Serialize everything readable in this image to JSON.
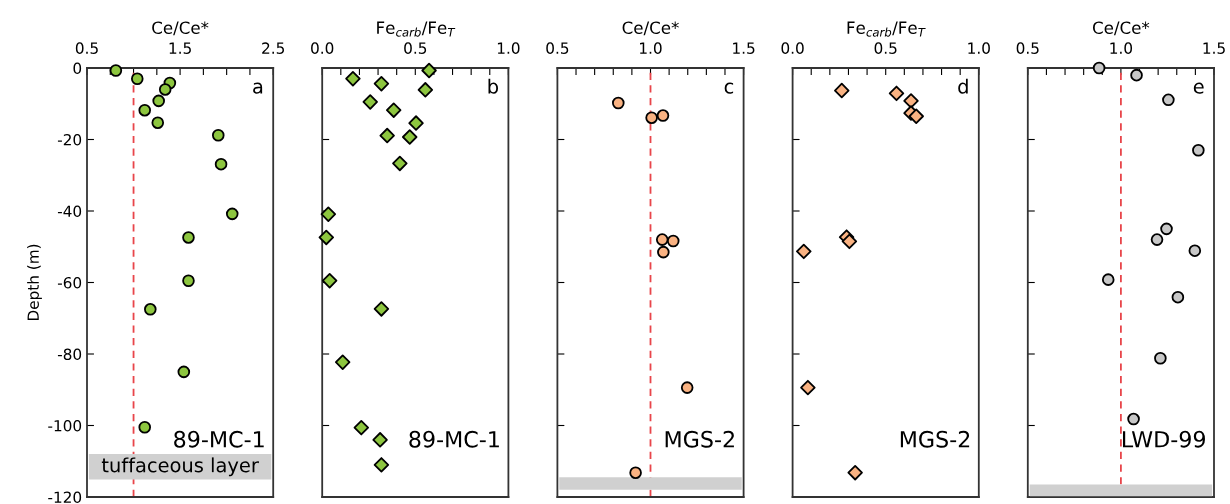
{
  "chart_data": [
    {
      "type": "scatter",
      "xlabel": "Ce/Ce*",
      "ylabel": "Depth (m)",
      "marker": "circle",
      "xlim": [
        0.5,
        2.5
      ],
      "ylim": [
        -120,
        0
      ],
      "xticks": [
        0.5,
        {
          "value": 0.75,
          "label": null
        },
        {
          "value": 1.0,
          "label": null
        },
        {
          "value": 1.25,
          "label": null
        },
        1.5,
        {
          "value": 1.75,
          "label": null
        },
        {
          "value": 2.0,
          "label": null
        },
        {
          "value": 2.25,
          "label": null
        },
        2.5
      ],
      "yticks": [
        0,
        -20,
        -40,
        -60,
        -80,
        -100,
        -120
      ],
      "series": [
        {
          "color": "#8dc63f",
          "x": [
            0.81,
            1.04,
            1.39,
            1.34,
            1.27,
            1.12,
            1.26,
            1.91,
            1.94,
            2.06,
            1.59,
            1.59,
            1.18,
            1.54,
            1.12
          ],
          "values": [
            -0.7,
            -3,
            -4.2,
            -6,
            -9.2,
            -11.8,
            -15.3,
            -18.8,
            -26.9,
            -40.8,
            -47.4,
            -59.5,
            -67.5,
            -85,
            -100.5
          ]
        }
      ],
      "ref_lines": [
        {
          "axis": "x",
          "value": 1.0,
          "color": "#e8454a",
          "line_style": "dashed"
        }
      ],
      "bands": [
        {
          "axis": "y",
          "from": -115.1,
          "to": -108,
          "label": "tuffaceous layer",
          "color": "#d0d0d0"
        }
      ],
      "annotations": [
        "a",
        "89-MC-1"
      ]
    },
    {
      "type": "scatter",
      "xlabel": "Fe$_{carb}$/Fe$_{T}$",
      "marker": "diamond",
      "tick_labels": "x",
      "xlim": [
        0,
        1
      ],
      "ylim": [
        -120,
        0
      ],
      "xticks": [
        {
          "value": 0,
          "label": "0.0"
        },
        {
          "value": 0.1,
          "label": null
        },
        {
          "value": 0.2,
          "label": null
        },
        {
          "value": 0.3,
          "label": null
        },
        {
          "value": 0.4,
          "label": null
        },
        0.5,
        {
          "value": 0.6,
          "label": null
        },
        {
          "value": 0.7,
          "label": null
        },
        {
          "value": 0.8,
          "label": null
        },
        {
          "value": 0.9,
          "label": null
        },
        {
          "value": 1.0,
          "label": "1.0"
        }
      ],
      "yticks": [
        0,
        -20,
        -40,
        -60,
        -80,
        -100,
        -120
      ],
      "series": [
        {
          "color": "#8dc63f",
          "x": [
            0.574,
            0.165,
            0.318,
            0.554,
            0.258,
            0.384,
            0.504,
            0.349,
            0.47,
            0.417,
            0.033,
            0.022,
            0.04,
            0.318,
            0.11,
            0.21,
            0.311,
            0.318
          ],
          "values": [
            -0.7,
            -3.0,
            -4.4,
            -6.1,
            -9.5,
            -11.8,
            -15.4,
            -18.9,
            -19.3,
            -26.7,
            -40.9,
            -47.4,
            -59.5,
            -67.4,
            -82.3,
            -100.6,
            -104,
            -111
          ]
        }
      ],
      "annotations": [
        "b",
        "89-MC-1"
      ]
    },
    {
      "type": "scatter",
      "xlabel": "Ce/Ce*",
      "marker": "circle",
      "tick_labels": "x",
      "xlim": [
        0.5,
        1.5
      ],
      "ylim": [
        -120,
        0
      ],
      "xticks": [
        0.5,
        {
          "value": 0.6,
          "label": null
        },
        {
          "value": 0.7,
          "label": null
        },
        {
          "value": 0.8,
          "label": null
        },
        {
          "value": 0.9,
          "label": null
        },
        {
          "value": 1.0,
          "label": "1.0"
        },
        {
          "value": 1.1,
          "label": null
        },
        {
          "value": 1.2,
          "label": null
        },
        {
          "value": 1.3,
          "label": null
        },
        {
          "value": 1.4,
          "label": null
        },
        1.5
      ],
      "yticks": [
        0,
        -20,
        -40,
        -60,
        -80,
        -100,
        -120
      ],
      "series": [
        {
          "color": "#f9b282",
          "x": [
            0.827,
            1.006,
            1.067,
            1.063,
            1.122,
            1.069,
            1.197,
            0.92
          ],
          "values": [
            -9.8,
            -13.9,
            -13.3,
            -48.0,
            -48.4,
            -51.5,
            -89.4,
            -113.2
          ]
        }
      ],
      "ref_lines": [
        {
          "axis": "x",
          "value": 1.0,
          "color": "#e8454a",
          "line_style": "dashed"
        }
      ],
      "bands": [
        {
          "axis": "y",
          "from": -118,
          "to": -114.5,
          "color": "#d0d0d0"
        }
      ],
      "annotations": [
        "c",
        "MGS-2"
      ]
    },
    {
      "type": "scatter",
      "xlabel": "Fe$_{carb}$/Fe$_{T}$",
      "marker": "diamond",
      "tick_labels": "x",
      "xlim": [
        0,
        1
      ],
      "ylim": [
        -120,
        0
      ],
      "xticks": [
        {
          "value": 0,
          "label": "0.0"
        },
        {
          "value": 0.1,
          "label": null
        },
        {
          "value": 0.2,
          "label": null
        },
        {
          "value": 0.3,
          "label": null
        },
        {
          "value": 0.4,
          "label": null
        },
        0.5,
        {
          "value": 0.6,
          "label": null
        },
        {
          "value": 0.7,
          "label": null
        },
        {
          "value": 0.8,
          "label": null
        },
        {
          "value": 0.9,
          "label": null
        },
        {
          "value": 1.0,
          "label": "1.0"
        }
      ],
      "yticks": [
        0,
        -20,
        -40,
        -60,
        -80,
        -100,
        -120
      ],
      "series": [
        {
          "color": "#f9b282",
          "x": [
            0.264,
            0.558,
            0.636,
            0.636,
            0.664,
            0.29,
            0.305,
            0.06,
            0.082,
            0.336
          ],
          "values": [
            -6.3,
            -7.1,
            -9.2,
            -12.6,
            -13.5,
            -47.3,
            -48.5,
            -51.3,
            -89.4,
            -113.2
          ]
        }
      ],
      "annotations": [
        "d",
        "MGS-2"
      ]
    },
    {
      "type": "scatter",
      "xlabel": "Ce/Ce*",
      "marker": "circle",
      "tick_labels": "x",
      "xlim": [
        0.5,
        1.5
      ],
      "ylim": [
        -120,
        0
      ],
      "xticks": [
        0.5,
        {
          "value": 0.6,
          "label": null
        },
        {
          "value": 0.7,
          "label": null
        },
        {
          "value": 0.8,
          "label": null
        },
        {
          "value": 0.9,
          "label": null
        },
        {
          "value": 1.0,
          "label": "1.0"
        },
        {
          "value": 1.1,
          "label": null
        },
        {
          "value": 1.2,
          "label": null
        },
        {
          "value": 1.3,
          "label": null
        },
        {
          "value": 1.4,
          "label": null
        },
        1.5
      ],
      "yticks": [
        0,
        -20,
        -40,
        -60,
        -80,
        -100,
        -120
      ],
      "series": [
        {
          "color": "#c8c8c8",
          "x": [
            0.883,
            1.084,
            1.255,
            1.416,
            1.245,
            1.194,
            1.397,
            0.932,
            1.306,
            1.212,
            1.068
          ],
          "values": [
            0,
            -2.0,
            -8.9,
            -23.0,
            -45.0,
            -48.0,
            -51.1,
            -59.2,
            -64.1,
            -81.2,
            -98.2
          ]
        }
      ],
      "ref_lines": [
        {
          "axis": "x",
          "value": 1.0,
          "color": "#e8454a",
          "line_style": "dashed"
        }
      ],
      "bands": [
        {
          "axis": "y",
          "from": -119.8,
          "to": -116.5,
          "color": "#d0d0d0"
        }
      ],
      "annotations": [
        "e",
        "LWD-99"
      ]
    }
  ]
}
